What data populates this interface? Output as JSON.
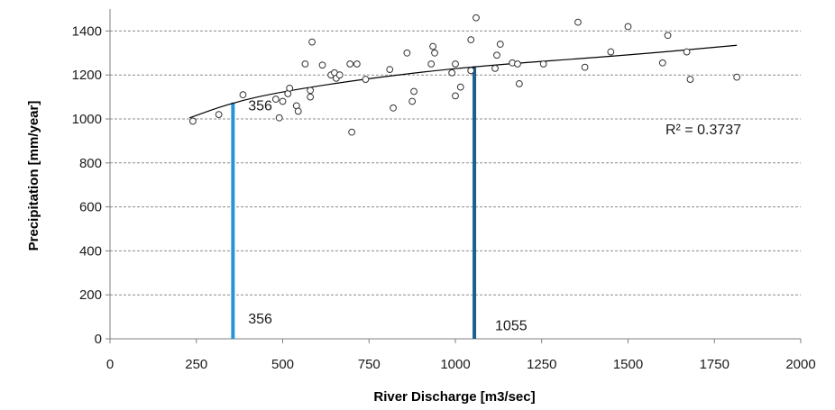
{
  "chart_data": {
    "type": "scatter",
    "title": "",
    "xlabel": "River Discharge    [m3/sec]",
    "ylabel": "Precipitation    [mm/year]",
    "xlim": [
      0,
      2000
    ],
    "ylim": [
      0,
      1500
    ],
    "x_ticks": [
      "0",
      "250",
      "500",
      "750",
      "1000",
      "1250",
      "1500",
      "1750",
      "2000"
    ],
    "y_ticks": [
      "0",
      "200",
      "400",
      "600",
      "800",
      "1000",
      "1200",
      "1400"
    ],
    "grid": "horizontal dashed",
    "series": [
      {
        "points": [
          [
            240,
            990
          ],
          [
            315,
            1020
          ],
          [
            385,
            1110
          ],
          [
            480,
            1090
          ],
          [
            490,
            1005
          ],
          [
            500,
            1080
          ],
          [
            515,
            1115
          ],
          [
            520,
            1140
          ],
          [
            540,
            1060
          ],
          [
            545,
            1035
          ],
          [
            565,
            1250
          ],
          [
            580,
            1130
          ],
          [
            580,
            1100
          ],
          [
            585,
            1350
          ],
          [
            615,
            1245
          ],
          [
            640,
            1200
          ],
          [
            650,
            1210
          ],
          [
            655,
            1185
          ],
          [
            665,
            1200
          ],
          [
            695,
            1250
          ],
          [
            700,
            940
          ],
          [
            715,
            1250
          ],
          [
            740,
            1180
          ],
          [
            810,
            1225
          ],
          [
            820,
            1050
          ],
          [
            860,
            1300
          ],
          [
            875,
            1080
          ],
          [
            880,
            1125
          ],
          [
            930,
            1250
          ],
          [
            935,
            1330
          ],
          [
            940,
            1300
          ],
          [
            990,
            1210
          ],
          [
            1000,
            1105
          ],
          [
            1000,
            1250
          ],
          [
            1015,
            1145
          ],
          [
            1045,
            1360
          ],
          [
            1045,
            1220
          ],
          [
            1060,
            1460
          ],
          [
            1115,
            1230
          ],
          [
            1120,
            1290
          ],
          [
            1130,
            1340
          ],
          [
            1165,
            1255
          ],
          [
            1180,
            1250
          ],
          [
            1185,
            1160
          ],
          [
            1255,
            1250
          ],
          [
            1355,
            1440
          ],
          [
            1375,
            1235
          ],
          [
            1450,
            1305
          ],
          [
            1500,
            1420
          ],
          [
            1600,
            1255
          ],
          [
            1615,
            1380
          ],
          [
            1670,
            1305
          ],
          [
            1680,
            1180
          ],
          [
            1815,
            1190
          ]
        ]
      }
    ],
    "trendline": {
      "type": "logarithmic",
      "x_range": [
        230,
        1815
      ],
      "points": [
        [
          230,
          1005
        ],
        [
          356,
          1075
        ],
        [
          500,
          1125
        ],
        [
          750,
          1185
        ],
        [
          1055,
          1240
        ],
        [
          1500,
          1290
        ],
        [
          1815,
          1335
        ]
      ]
    },
    "r_squared_label": "R² = 0.3737",
    "vertical_lines": [
      {
        "x": 356,
        "color": "#2a93d5",
        "top_y": 1075,
        "label": "356"
      },
      {
        "x": 1055,
        "color": "#1b5f8c",
        "top_y": 1240,
        "label": "1055"
      }
    ],
    "annotations": [
      {
        "text": "356",
        "x": 400,
        "y": 1060
      },
      {
        "text": "356",
        "x": 400,
        "y": 90
      },
      {
        "text": "1055",
        "x": 1115,
        "y": 60
      }
    ]
  }
}
